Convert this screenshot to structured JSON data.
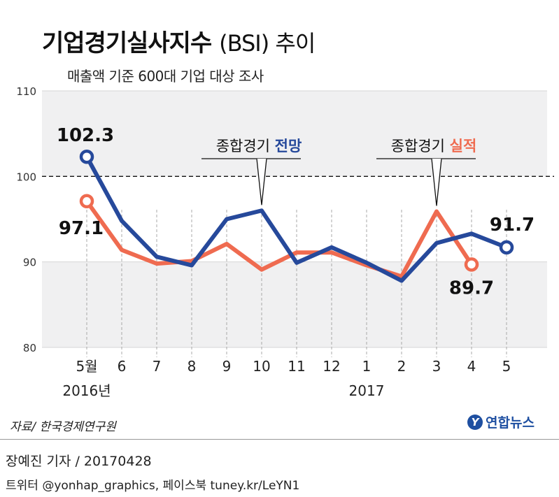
{
  "header": {
    "title": "기업경기실사지수",
    "title_suffix": "(BSI) 추이",
    "subtitle": "매출액 기준 600대 기업 대상 조사"
  },
  "chart_data": {
    "type": "line",
    "title": "기업경기실사지수 (BSI) 추이",
    "subtitle": "매출액 기준 600대 기업 대상 조사",
    "ylim": [
      80,
      110
    ],
    "yticks": [
      "80",
      "90",
      "100",
      "110"
    ],
    "reference_line": 100,
    "categories": [
      "5월",
      "6",
      "7",
      "8",
      "9",
      "10",
      "11",
      "12",
      "1",
      "2",
      "3",
      "4",
      "5"
    ],
    "year_labels": [
      {
        "text": "2016년",
        "category_index": 0
      },
      {
        "text": "2017",
        "category_index": 8
      }
    ],
    "series": [
      {
        "name": "종합경기 전망",
        "label_prefix": "종합경기 ",
        "label_emph": "전망",
        "color": "#26499b",
        "values": [
          102.3,
          94.8,
          90.6,
          89.6,
          95.0,
          96.0,
          89.9,
          91.7,
          89.9,
          87.8,
          92.2,
          93.3,
          91.7
        ],
        "callout_index": 5,
        "endpoints": [
          {
            "index": 0,
            "label": "102.3"
          },
          {
            "index": 12,
            "label": "91.7"
          }
        ]
      },
      {
        "name": "종합경기 실적",
        "label_prefix": "종합경기 ",
        "label_emph": "실적",
        "color": "#ef6b50",
        "values": [
          97.1,
          91.4,
          89.8,
          90.1,
          92.1,
          89.1,
          91.1,
          91.1,
          89.6,
          88.3,
          95.9,
          89.7,
          null
        ],
        "callout_index": 10,
        "endpoints": [
          {
            "index": 0,
            "label": "97.1"
          },
          {
            "index": 11,
            "label": "89.7"
          }
        ]
      }
    ]
  },
  "footer": {
    "source": "자료/ 한국경제연구원",
    "logo_mark": "Y",
    "logo_text": "연합뉴스",
    "credit": "장예진 기자 / 20170428",
    "social": "트위터 @yonhap_graphics, 페이스북 tuney.kr/LeYN1"
  }
}
